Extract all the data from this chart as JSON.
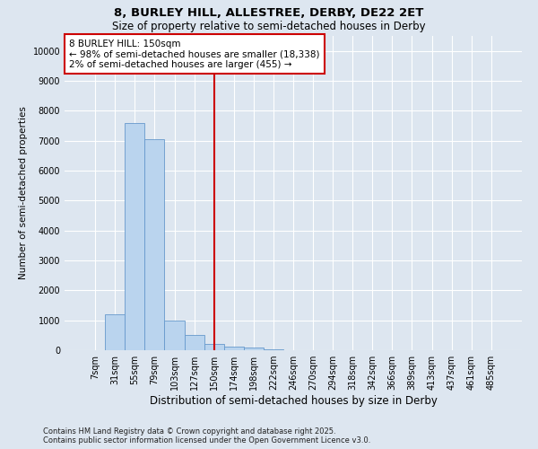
{
  "title1": "8, BURLEY HILL, ALLESTREE, DERBY, DE22 2ET",
  "title2": "Size of property relative to semi-detached houses in Derby",
  "xlabel": "Distribution of semi-detached houses by size in Derby",
  "ylabel": "Number of semi-detached properties",
  "footer1": "Contains HM Land Registry data © Crown copyright and database right 2025.",
  "footer2": "Contains public sector information licensed under the Open Government Licence v3.0.",
  "categories": [
    "7sqm",
    "31sqm",
    "55sqm",
    "79sqm",
    "103sqm",
    "127sqm",
    "150sqm",
    "174sqm",
    "198sqm",
    "222sqm",
    "246sqm",
    "270sqm",
    "294sqm",
    "318sqm",
    "342sqm",
    "366sqm",
    "389sqm",
    "413sqm",
    "437sqm",
    "461sqm",
    "485sqm"
  ],
  "values": [
    10,
    1200,
    7600,
    7050,
    1000,
    500,
    200,
    120,
    80,
    30,
    10,
    0,
    0,
    0,
    0,
    0,
    0,
    0,
    0,
    0,
    0
  ],
  "bar_color": "#bad4ee",
  "bar_edge_color": "#6699cc",
  "vline_x_idx": 6,
  "vline_color": "#cc0000",
  "annotation_line1": "8 BURLEY HILL: 150sqm",
  "annotation_line2": "← 98% of semi-detached houses are smaller (18,338)",
  "annotation_line3": "2% of semi-detached houses are larger (455) →",
  "box_edge_color": "#cc0000",
  "ylim": [
    0,
    10500
  ],
  "yticks": [
    0,
    1000,
    2000,
    3000,
    4000,
    5000,
    6000,
    7000,
    8000,
    9000,
    10000
  ],
  "background_color": "#dde6f0",
  "grid_color": "#ffffff",
  "title1_fontsize": 9.5,
  "title2_fontsize": 8.5,
  "xlabel_fontsize": 8.5,
  "ylabel_fontsize": 7.5,
  "tick_fontsize": 7,
  "footer_fontsize": 6,
  "annotation_fontsize": 7.5
}
